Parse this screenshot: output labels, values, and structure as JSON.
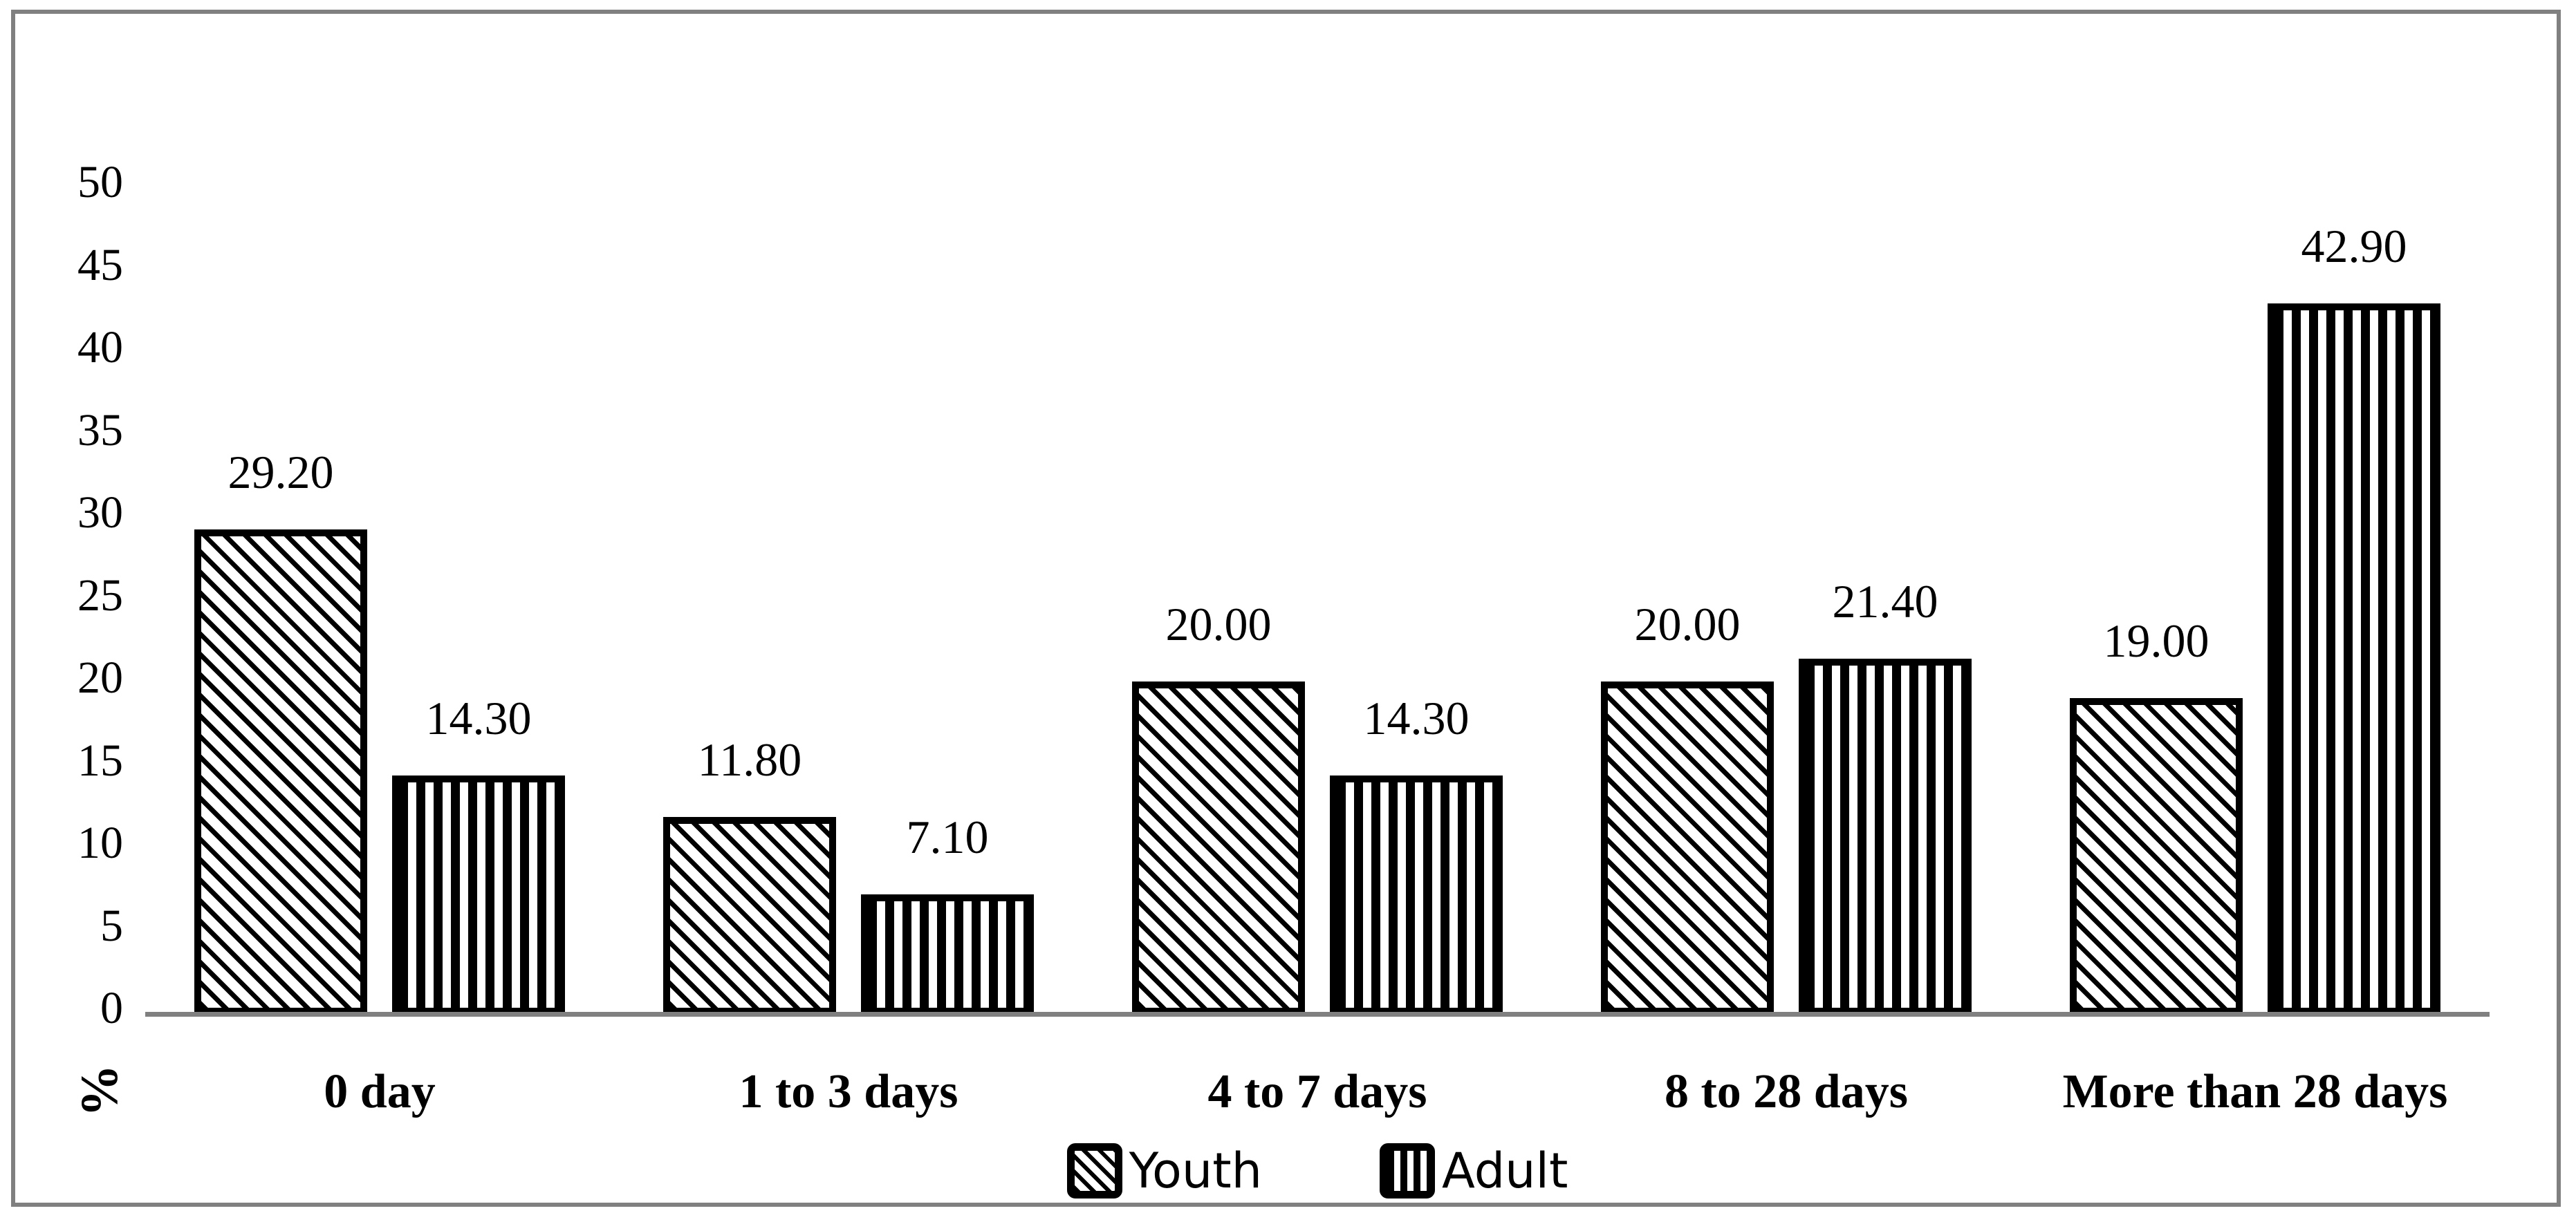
{
  "figure": {
    "background": "#ffffff",
    "frame_color": "#808080",
    "axis_line_color": "#808080",
    "bar_border_color": "#000000",
    "bar_fill_color": "#ffffff",
    "pattern_color": "#000000"
  },
  "chart_data": {
    "type": "bar",
    "title": "",
    "xlabel": "",
    "ylabel": "%",
    "categories": [
      "0 day",
      "1 to 3 days",
      "4 to 7 days",
      "8 to 28 days",
      "More than 28 days"
    ],
    "series": [
      {
        "name": "Youth",
        "pattern": "diagonal-stripes",
        "values": [
          29.2,
          11.8,
          20.0,
          20.0,
          19.0
        ],
        "labels": [
          "29.20",
          "11.80",
          "20.00",
          "20.00",
          "19.00"
        ]
      },
      {
        "name": "Adult",
        "pattern": "vertical-stripes",
        "values": [
          14.3,
          7.1,
          14.3,
          21.4,
          42.9
        ],
        "labels": [
          "14.30",
          "7.10",
          "14.30",
          "21.40",
          "42.90"
        ]
      }
    ],
    "ylim": [
      0,
      50
    ],
    "yticks": [
      0,
      5,
      10,
      15,
      20,
      25,
      30,
      35,
      40,
      45,
      50
    ],
    "grid": false,
    "legend": [
      "Youth",
      "Adult"
    ],
    "legend_position": "bottom"
  }
}
